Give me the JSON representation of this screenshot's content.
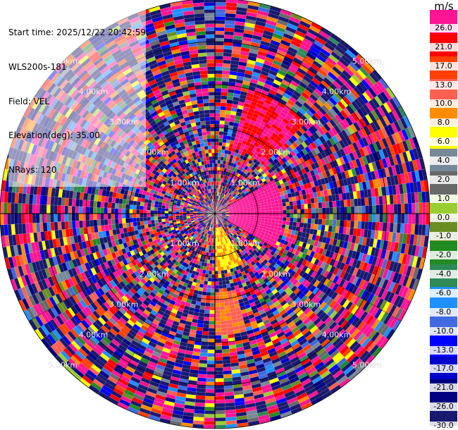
{
  "info": {
    "start_time": "Start time: 2025/12/22 20:42:59",
    "instrument": "WLS200s-181",
    "field": "Field: VEL",
    "elevation": "Elevation(deg): 35.00",
    "nrays": "NRays: 120"
  },
  "colorbar": {
    "unit": "m/s",
    "colors": [
      "#ff1493",
      "#ff0000",
      "#ff4000",
      "#ff6050",
      "#ff8c00",
      "#ffff00",
      "#778899",
      "#696969",
      "#9acd32",
      "#6b8e23",
      "#228b22",
      "#2e8b57",
      "#1e90ff",
      "#4169e1",
      "#0000ff",
      "#0000cd",
      "#000080",
      "#191970"
    ],
    "ticks": [
      "26.0",
      "21.0",
      "17.0",
      "13.0",
      "10.0",
      "8.0",
      "6.0",
      "4.0",
      "2.0",
      "1.0",
      "0.0",
      "-1.0",
      "-2.0",
      "-4.0",
      "-6.0",
      "-8.0",
      "-10.0",
      "-13.0",
      "-17.0",
      "-21.0",
      "-26.0",
      "-30.0"
    ]
  },
  "chart_data": {
    "type": "heatmap",
    "projection": "polar-ppi",
    "field": "VEL",
    "nrays": 120,
    "elevation_deg": 35.0,
    "range_km": [
      0,
      5.0
    ],
    "range_ring_km": [
      1,
      2,
      3,
      4,
      5
    ],
    "range_ring_labels": [
      "1.00km",
      "2.00km",
      "3.00km",
      "4.00km",
      "5.00km"
    ],
    "value_range": [
      -30,
      30
    ],
    "coherent_regions": [
      {
        "azimuth_deg": [
          15,
          45
        ],
        "range_km": [
          1.6,
          3.0
        ],
        "value": 21.0
      },
      {
        "azimuth_deg": [
          60,
          120
        ],
        "range_km": [
          0.3,
          1.6
        ],
        "value": 26.0
      },
      {
        "azimuth_deg": [
          150,
          180
        ],
        "range_km": [
          0.3,
          1.3
        ],
        "value": 8.0
      },
      {
        "azimuth_deg": [
          165,
          180
        ],
        "range_km": [
          1.8,
          2.8
        ],
        "value": 10.0
      },
      {
        "azimuth_deg": [
          0,
          360
        ],
        "range_km": [
          4.4,
          5.0
        ],
        "value": "noise"
      }
    ]
  }
}
